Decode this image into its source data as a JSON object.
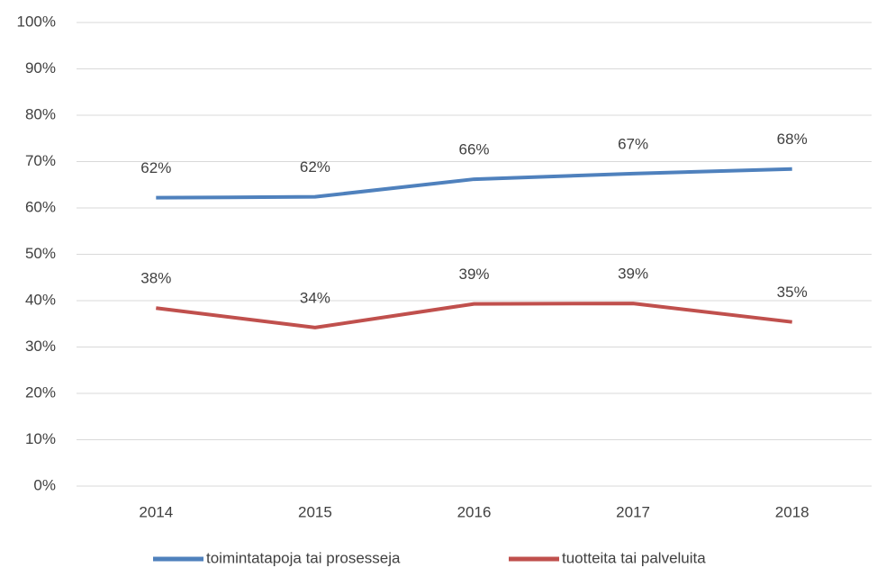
{
  "chart_data": {
    "type": "line",
    "categories": [
      "2014",
      "2015",
      "2016",
      "2017",
      "2018"
    ],
    "series": [
      {
        "name": "toimintatapoja tai prosesseja",
        "color": "#4f81bd",
        "values": [
          62.2,
          62.4,
          66.2,
          67.4,
          68.4
        ],
        "value_labels": [
          "62%",
          "62%",
          "66%",
          "67%",
          "68%"
        ]
      },
      {
        "name": "tuotteita tai palveluita",
        "color": "#c0504d",
        "values": [
          38.4,
          34.2,
          39.3,
          39.4,
          35.4
        ],
        "value_labels": [
          "38%",
          "34%",
          "39%",
          "39%",
          "35%"
        ]
      }
    ],
    "ylim": [
      0,
      100
    ],
    "yticks": [
      {
        "value": 0,
        "label": "0%"
      },
      {
        "value": 10,
        "label": "10%"
      },
      {
        "value": 20,
        "label": "20%"
      },
      {
        "value": 30,
        "label": "30%"
      },
      {
        "value": 40,
        "label": "40%"
      },
      {
        "value": 50,
        "label": "50%"
      },
      {
        "value": 60,
        "label": "60%"
      },
      {
        "value": 70,
        "label": "70%"
      },
      {
        "value": 80,
        "label": "80%"
      },
      {
        "value": 90,
        "label": "90%"
      },
      {
        "value": 100,
        "label": "100%"
      }
    ],
    "grid": true,
    "legend": "bottom"
  }
}
